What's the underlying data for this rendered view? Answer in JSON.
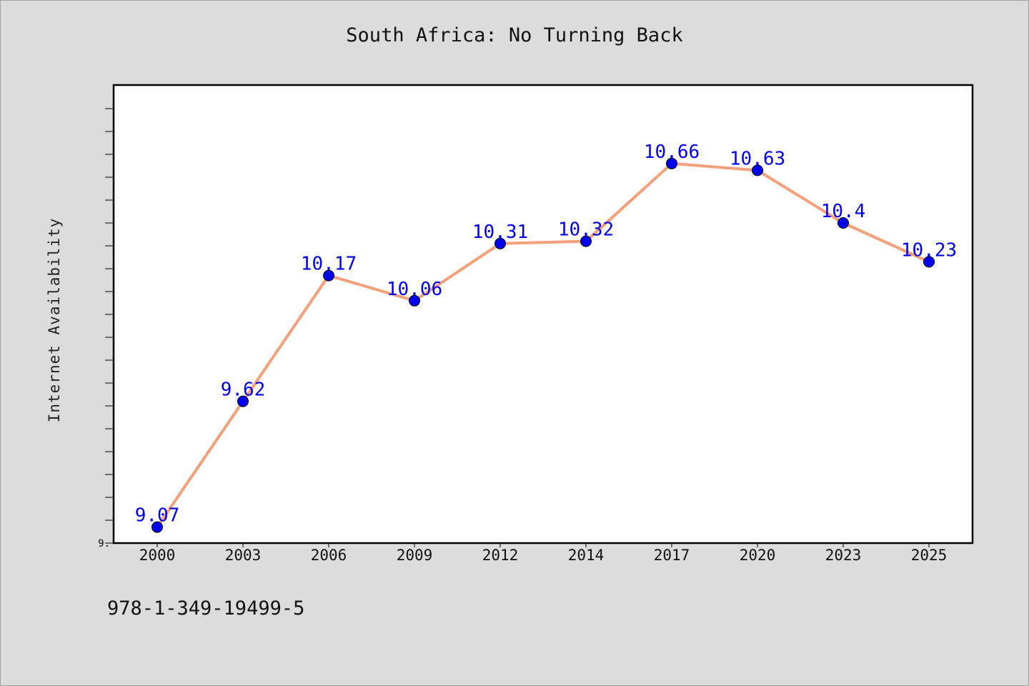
{
  "chart_data": {
    "type": "line",
    "title": "South Africa: No Turning Back",
    "xlabel": "",
    "ylabel": "Internet Availability",
    "categories": [
      "2000",
      "2003",
      "2006",
      "2009",
      "2012",
      "2014",
      "2017",
      "2020",
      "2023",
      "2025"
    ],
    "series": [
      {
        "values": [
          9.07,
          9.62,
          10.17,
          10.06,
          10.31,
          10.32,
          10.66,
          10.63,
          10.4,
          10.23
        ]
      }
    ],
    "data_labels": [
      "9.07",
      "9.62",
      "10.17",
      "10.06",
      "10.31",
      "10.32",
      "10.66",
      "10.63",
      "10.4",
      "10.23"
    ],
    "ylim": [
      9.0,
      11.0
    ],
    "y_tick_labels": [
      "9."
    ],
    "grid": false,
    "line_color": "#f4a07a",
    "marker_color": "#0000ee",
    "label_color": "#0000ee"
  },
  "footer": {
    "isbn": "978-1-349-19499-5"
  }
}
